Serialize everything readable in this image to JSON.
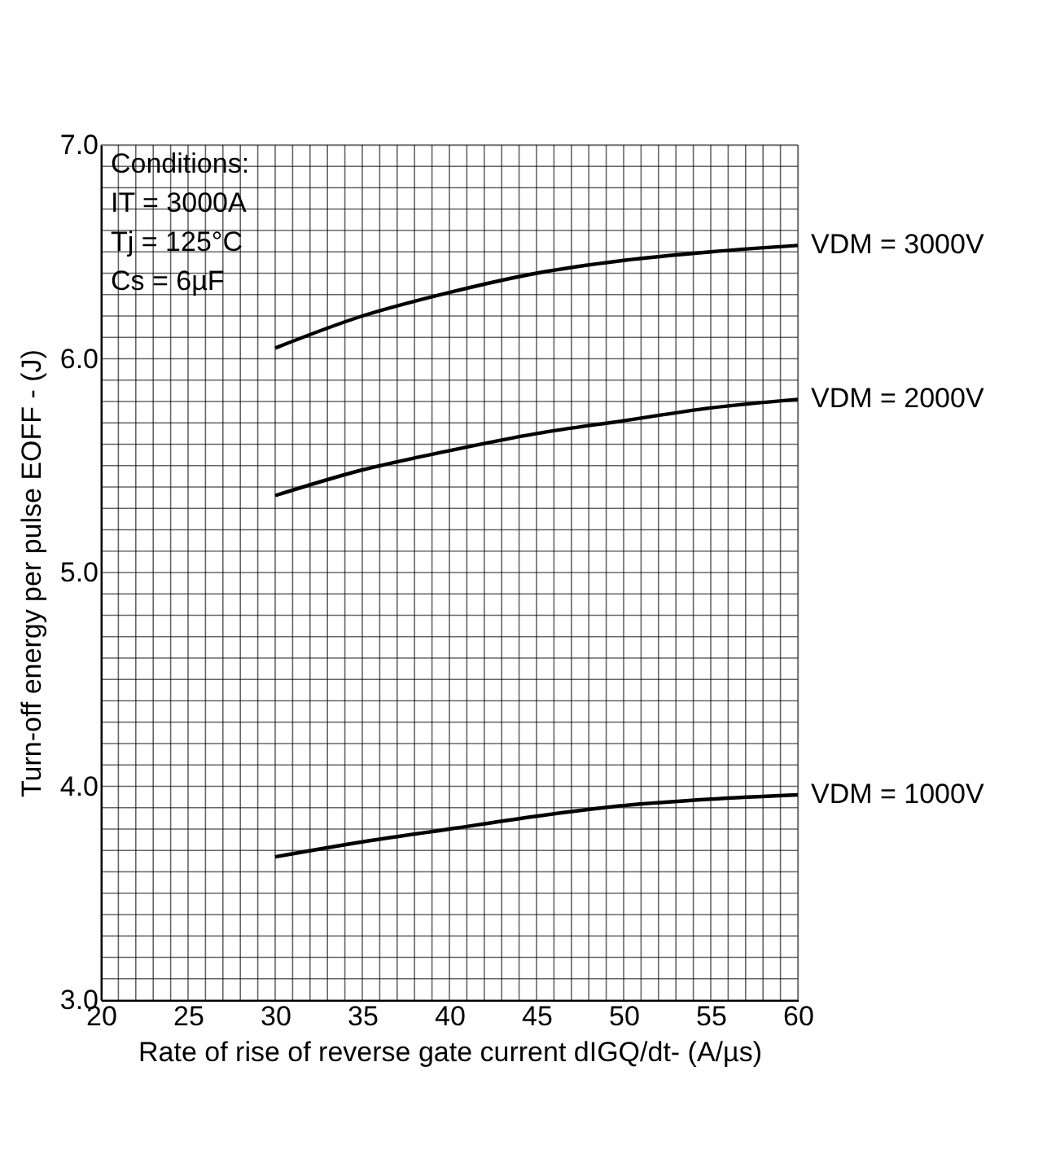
{
  "chart_data": {
    "type": "line",
    "xlabel": "Rate of rise of reverse gate current  dIGQ/dt- (A/µs)",
    "ylabel": "Turn-off energy per pulse EOFF - (J)",
    "annotations": [
      "Conditions:",
      "IT = 3000A",
      "Tj = 125°C",
      "Cs = 6µF"
    ],
    "series": [
      {
        "name": "VDM = 3000V",
        "color": "#000000",
        "x": [
          30,
          35,
          40,
          45,
          50,
          55,
          60
        ],
        "values": [
          6.05,
          6.2,
          6.31,
          6.4,
          6.46,
          6.5,
          6.53
        ]
      },
      {
        "name": "VDM = 2000V",
        "color": "#000000",
        "x": [
          30,
          35,
          40,
          45,
          50,
          55,
          60
        ],
        "values": [
          5.36,
          5.48,
          5.57,
          5.65,
          5.71,
          5.77,
          5.81
        ]
      },
      {
        "name": "VDM = 1000V",
        "color": "#000000",
        "x": [
          30,
          35,
          40,
          45,
          50,
          55,
          60
        ],
        "values": [
          3.67,
          3.74,
          3.8,
          3.86,
          3.91,
          3.94,
          3.96
        ]
      }
    ],
    "xlim": [
      20,
      60
    ],
    "ylim": [
      3.0,
      7.0
    ],
    "xticks": [
      20,
      {
        "value": 21,
        "label": null
      },
      {
        "value": 22,
        "label": null
      },
      {
        "value": 23,
        "label": null
      },
      {
        "value": 24,
        "label": null
      },
      25,
      {
        "value": 26,
        "label": null
      },
      {
        "value": 27,
        "label": null
      },
      {
        "value": 28,
        "label": null
      },
      {
        "value": 29,
        "label": null
      },
      30,
      {
        "value": 31,
        "label": null
      },
      {
        "value": 32,
        "label": null
      },
      {
        "value": 33,
        "label": null
      },
      {
        "value": 34,
        "label": null
      },
      35,
      {
        "value": 36,
        "label": null
      },
      {
        "value": 37,
        "label": null
      },
      {
        "value": 38,
        "label": null
      },
      {
        "value": 39,
        "label": null
      },
      40,
      {
        "value": 41,
        "label": null
      },
      {
        "value": 42,
        "label": null
      },
      {
        "value": 43,
        "label": null
      },
      {
        "value": 44,
        "label": null
      },
      45,
      {
        "value": 46,
        "label": null
      },
      {
        "value": 47,
        "label": null
      },
      {
        "value": 48,
        "label": null
      },
      {
        "value": 49,
        "label": null
      },
      50,
      {
        "value": 51,
        "label": null
      },
      {
        "value": 52,
        "label": null
      },
      {
        "value": 53,
        "label": null
      },
      {
        "value": 54,
        "label": null
      },
      55,
      {
        "value": 56,
        "label": null
      },
      {
        "value": 57,
        "label": null
      },
      {
        "value": 58,
        "label": null
      },
      {
        "value": 59,
        "label": null
      },
      60
    ],
    "yticks": [
      {
        "value": 3.0,
        "label": "3.0"
      },
      {
        "value": 3.1,
        "label": null
      },
      {
        "value": 3.2,
        "label": null
      },
      {
        "value": 3.3,
        "label": null
      },
      {
        "value": 3.4,
        "label": null
      },
      {
        "value": 3.5,
        "label": null
      },
      {
        "value": 3.6,
        "label": null
      },
      {
        "value": 3.7,
        "label": null
      },
      {
        "value": 3.8,
        "label": null
      },
      {
        "value": 3.9,
        "label": null
      },
      {
        "value": 4.0,
        "label": "4.0"
      },
      {
        "value": 4.1,
        "label": null
      },
      {
        "value": 4.2,
        "label": null
      },
      {
        "value": 4.3,
        "label": null
      },
      {
        "value": 4.4,
        "label": null
      },
      {
        "value": 4.5,
        "label": null
      },
      {
        "value": 4.6,
        "label": null
      },
      {
        "value": 4.7,
        "label": null
      },
      {
        "value": 4.8,
        "label": null
      },
      {
        "value": 4.9,
        "label": null
      },
      {
        "value": 5.0,
        "label": "5.0"
      },
      {
        "value": 5.1,
        "label": null
      },
      {
        "value": 5.2,
        "label": null
      },
      {
        "value": 5.3,
        "label": null
      },
      {
        "value": 5.4,
        "label": null
      },
      {
        "value": 5.5,
        "label": null
      },
      {
        "value": 5.6,
        "label": null
      },
      {
        "value": 5.7,
        "label": null
      },
      {
        "value": 5.8,
        "label": null
      },
      {
        "value": 5.9,
        "label": null
      },
      {
        "value": 6.0,
        "label": "6.0"
      },
      {
        "value": 6.1,
        "label": null
      },
      {
        "value": 6.2,
        "label": null
      },
      {
        "value": 6.3,
        "label": null
      },
      {
        "value": 6.4,
        "label": null
      },
      {
        "value": 6.5,
        "label": null
      },
      {
        "value": 6.6,
        "label": null
      },
      {
        "value": 6.7,
        "label": null
      },
      {
        "value": 6.8,
        "label": null
      },
      {
        "value": 6.9,
        "label": null
      },
      {
        "value": 7.0,
        "label": "7.0"
      }
    ],
    "grid": true,
    "legend": false,
    "marker": "none",
    "line_style": "solid"
  }
}
